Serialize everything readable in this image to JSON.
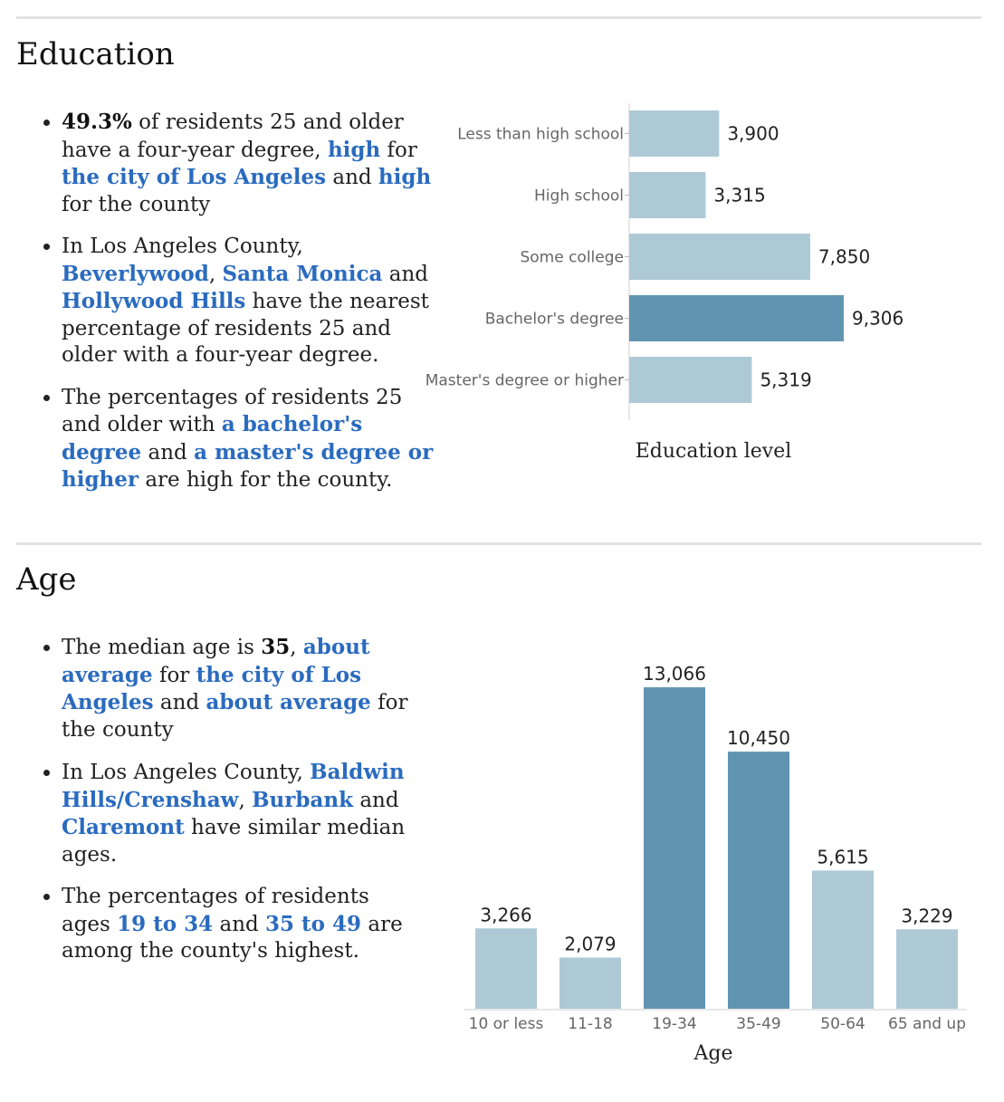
{
  "education": {
    "title": "Education",
    "bullets": [
      [
        {
          "t": "49.3%",
          "s": "b"
        },
        {
          "t": " of residents 25 and older have a four-year degree, "
        },
        {
          "t": "high",
          "s": "l"
        },
        {
          "t": " for "
        },
        {
          "t": "the city of Los Angeles",
          "s": "l"
        },
        {
          "t": " and "
        },
        {
          "t": "high",
          "s": "l"
        },
        {
          "t": " for the county"
        }
      ],
      [
        {
          "t": "In Los Angeles County, "
        },
        {
          "t": "Beverlywood",
          "s": "l"
        },
        {
          "t": ", "
        },
        {
          "t": "Santa Monica",
          "s": "l"
        },
        {
          "t": " and "
        },
        {
          "t": "Hollywood Hills",
          "s": "l"
        },
        {
          "t": " have the nearest percentage of residents 25 and older with a four-year degree."
        }
      ],
      [
        {
          "t": "The percentages of residents 25 and older with "
        },
        {
          "t": "a bachelor's degree",
          "s": "l"
        },
        {
          "t": " and "
        },
        {
          "t": "a master's degree or higher",
          "s": "l"
        },
        {
          "t": " are high for the county."
        }
      ]
    ]
  },
  "age": {
    "title": "Age",
    "bullets": [
      [
        {
          "t": "The median age is "
        },
        {
          "t": "35",
          "s": "b"
        },
        {
          "t": ", "
        },
        {
          "t": "about average",
          "s": "l"
        },
        {
          "t": " for "
        },
        {
          "t": "the city of Los Angeles",
          "s": "l"
        },
        {
          "t": " and "
        },
        {
          "t": "about average",
          "s": "l"
        },
        {
          "t": " for the county"
        }
      ],
      [
        {
          "t": "In Los Angeles County, "
        },
        {
          "t": "Baldwin Hills/Crenshaw",
          "s": "l"
        },
        {
          "t": ", "
        },
        {
          "t": "Burbank",
          "s": "l"
        },
        {
          "t": " and "
        },
        {
          "t": "Claremont",
          "s": "l"
        },
        {
          "t": " have similar median ages."
        }
      ],
      [
        {
          "t": "The percentages of residents ages "
        },
        {
          "t": "19 to 34",
          "s": "l"
        },
        {
          "t": " and "
        },
        {
          "t": "35 to 49",
          "s": "l"
        },
        {
          "t": " are among the county's highest."
        }
      ]
    ]
  },
  "chart_data": [
    {
      "type": "bar",
      "orientation": "horizontal",
      "categories": [
        "Less than high school",
        "High school",
        "Some college",
        "Bachelor's degree",
        "Master's degree or higher"
      ],
      "values": [
        3900,
        3315,
        7850,
        9306,
        5319
      ],
      "labels": [
        "3,900",
        "3,315",
        "7,850",
        "9,306",
        "5,319"
      ],
      "highlighted": [
        false,
        false,
        false,
        true,
        false
      ],
      "xlabel": "Education level",
      "colors": {
        "normal": "#aec9d6",
        "highlight": "#6094b1"
      }
    },
    {
      "type": "bar",
      "orientation": "vertical",
      "categories": [
        "10 or less",
        "11-18",
        "19-34",
        "35-49",
        "50-64",
        "65 and up"
      ],
      "values": [
        3266,
        2079,
        13066,
        10450,
        5615,
        3229
      ],
      "labels": [
        "3,266",
        "2,079",
        "13,066",
        "10,450",
        "5,615",
        "3,229"
      ],
      "highlighted": [
        false,
        false,
        true,
        true,
        false,
        false
      ],
      "xlabel": "Age",
      "colors": {
        "normal": "#aec9d6",
        "highlight": "#6094b1"
      }
    }
  ]
}
